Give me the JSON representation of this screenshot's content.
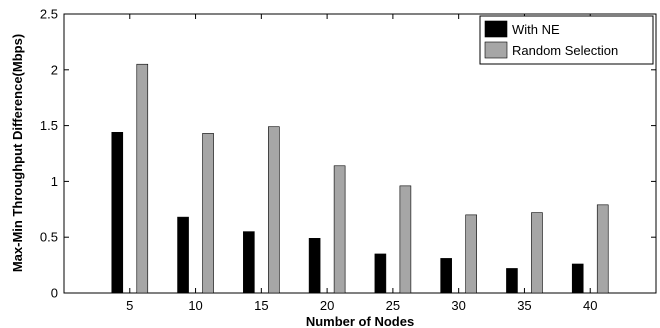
{
  "chart_data": {
    "type": "bar",
    "categories": [
      "5",
      "10",
      "15",
      "20",
      "25",
      "30",
      "35",
      "40"
    ],
    "series": [
      {
        "name": "With NE",
        "values": [
          1.44,
          0.68,
          0.55,
          0.49,
          0.35,
          0.31,
          0.22,
          0.26
        ],
        "color": "#000000"
      },
      {
        "name": "Random Selection",
        "values": [
          2.05,
          1.43,
          1.49,
          1.14,
          0.96,
          0.7,
          0.72,
          0.79
        ],
        "color": "#a6a6a6"
      }
    ],
    "xlabel": "Number of Nodes",
    "ylabel": "Max-Min Throughput Difference(Mbps)",
    "ylim": [
      0,
      2.5
    ],
    "yticks": [
      "0",
      "0.5",
      "1",
      "1.5",
      "2",
      "2.5"
    ],
    "grid": false,
    "legend_position": "top-right"
  }
}
